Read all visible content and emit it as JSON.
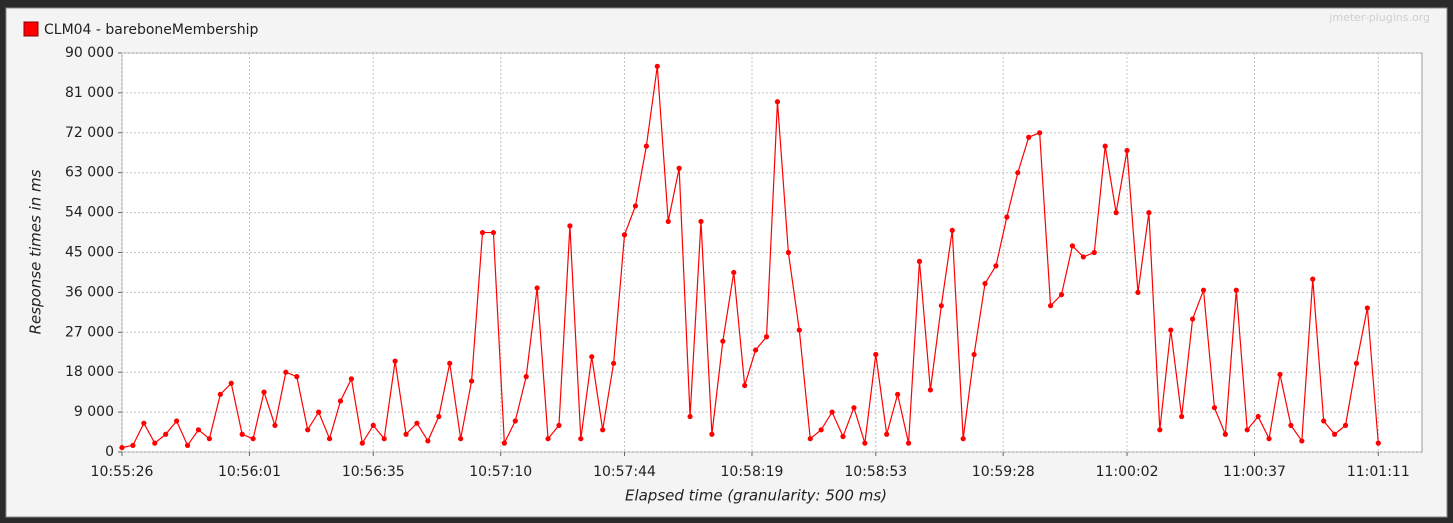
{
  "chart_data": {
    "type": "line",
    "title": "jmeter-plugins.org",
    "xlabel": "Elapsed time (granularity: 500 ms)",
    "ylabel": "Response times in ms",
    "legend": "top-left",
    "grid": true,
    "xlim": [
      "10:55:26",
      "11:01:23"
    ],
    "ylim": [
      0,
      90000
    ],
    "yticks": [
      {
        "value": 0,
        "label": "0"
      },
      {
        "value": 9000,
        "label": "9 000"
      },
      {
        "value": 18000,
        "label": "18 000"
      },
      {
        "value": 27000,
        "label": "27 000"
      },
      {
        "value": 36000,
        "label": "36 000"
      },
      {
        "value": 45000,
        "label": "45 000"
      },
      {
        "value": 54000,
        "label": "54 000"
      },
      {
        "value": 63000,
        "label": "63 000"
      },
      {
        "value": 72000,
        "label": "72 000"
      },
      {
        "value": 81000,
        "label": "81 000"
      },
      {
        "value": 90000,
        "label": "90 000"
      }
    ],
    "xticks": [
      "10:55:26",
      "10:56:01",
      "10:56:35",
      "10:57:10",
      "10:57:44",
      "10:58:19",
      "10:58:53",
      "10:59:28",
      "11:00:02",
      "11:00:37",
      "11:01:11"
    ],
    "x": [
      "10:55:26",
      "10:55:29",
      "10:55:32",
      "10:55:35",
      "10:55:38",
      "10:55:41",
      "10:55:44",
      "10:55:47",
      "10:55:50",
      "10:55:53",
      "10:55:56",
      "10:55:59",
      "10:56:02",
      "10:56:05",
      "10:56:08",
      "10:56:11",
      "10:56:14",
      "10:56:17",
      "10:56:20",
      "10:56:23",
      "10:56:26",
      "10:56:29",
      "10:56:32",
      "10:56:35",
      "10:56:38",
      "10:56:41",
      "10:56:44",
      "10:56:47",
      "10:56:50",
      "10:56:53",
      "10:56:56",
      "10:56:59",
      "10:57:02",
      "10:57:05",
      "10:57:08",
      "10:57:11",
      "10:57:14",
      "10:57:17",
      "10:57:20",
      "10:57:23",
      "10:57:26",
      "10:57:29",
      "10:57:32",
      "10:57:35",
      "10:57:38",
      "10:57:41",
      "10:57:44",
      "10:57:47",
      "10:57:50",
      "10:57:53",
      "10:57:56",
      "10:57:59",
      "10:58:02",
      "10:58:05",
      "10:58:08",
      "10:58:11",
      "10:58:14",
      "10:58:17",
      "10:58:20",
      "10:58:23",
      "10:58:26",
      "10:58:29",
      "10:58:32",
      "10:58:35",
      "10:58:38",
      "10:58:41",
      "10:58:44",
      "10:58:47",
      "10:58:50",
      "10:58:53",
      "10:58:56",
      "10:58:59",
      "10:59:02",
      "10:59:05",
      "10:59:08",
      "10:59:11",
      "10:59:14",
      "10:59:17",
      "10:59:20",
      "10:59:23",
      "10:59:26",
      "10:59:29",
      "10:59:32",
      "10:59:35",
      "10:59:38",
      "10:59:41",
      "10:59:44",
      "10:59:47",
      "10:59:50",
      "10:59:53",
      "10:59:56",
      "10:59:59",
      "11:00:02",
      "11:00:05",
      "11:00:08",
      "11:00:11",
      "11:00:14",
      "11:00:17",
      "11:00:20",
      "11:00:23",
      "11:00:26",
      "11:00:29",
      "11:00:32",
      "11:00:35",
      "11:00:38",
      "11:00:41",
      "11:00:44",
      "11:00:47",
      "11:00:50",
      "11:00:53",
      "11:00:56",
      "11:00:59",
      "11:01:02",
      "11:01:05",
      "11:01:08",
      "11:01:11"
    ],
    "series": [
      {
        "name": "CLM04 - bareboneMembership",
        "color": "#ff0000",
        "values": [
          1000,
          1500,
          6500,
          2000,
          4000,
          7000,
          1500,
          5000,
          3000,
          13000,
          15500,
          4000,
          3000,
          13500,
          6000,
          18000,
          17000,
          5000,
          9000,
          3000,
          11500,
          16500,
          2000,
          6000,
          3000,
          20500,
          4000,
          6500,
          2500,
          8000,
          20000,
          3000,
          16000,
          49500,
          49500,
          2000,
          7000,
          17000,
          37000,
          3000,
          6000,
          51000,
          3000,
          21500,
          5000,
          20000,
          49000,
          55500,
          69000,
          87000,
          52000,
          64000,
          8000,
          52000,
          4000,
          25000,
          40500,
          15000,
          23000,
          26000,
          79000,
          45000,
          27500,
          3000,
          5000,
          9000,
          3500,
          10000,
          2000,
          22000,
          4000,
          13000,
          2000,
          43000,
          14000,
          33000,
          50000,
          3000,
          22000,
          38000,
          42000,
          53000,
          63000,
          71000,
          72000,
          33000,
          35500,
          46500,
          44000,
          45000,
          69000,
          54000,
          68000,
          36000,
          54000,
          5000,
          27500,
          8000,
          30000,
          36500,
          10000,
          4000,
          36500,
          5000,
          8000,
          3000,
          17500,
          6000,
          2500,
          39000,
          7000,
          4000,
          6000,
          20000,
          32500,
          2000
        ]
      }
    ]
  }
}
